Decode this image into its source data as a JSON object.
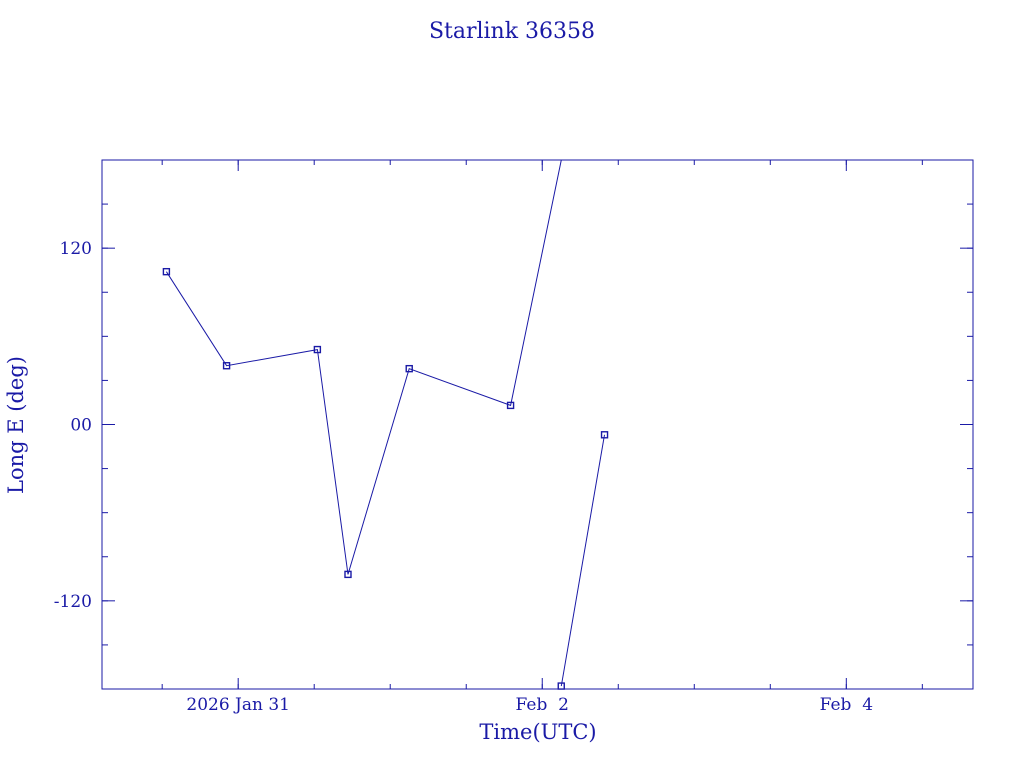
{
  "chart_data": {
    "type": "line",
    "title": "Starlink 36358",
    "xlabel": "Time(UTC)",
    "ylabel": "Long E (deg)",
    "x_ticks": [
      {
        "value": "2026-01-31",
        "label": "2026 Jan 31"
      },
      {
        "value": "2026-02-02",
        "label": "Feb  2"
      },
      {
        "value": "2026-02-04",
        "label": "Feb  4"
      }
    ],
    "y_ticks": [
      {
        "value": 120,
        "label": "120"
      },
      {
        "value": 0,
        "label": "00"
      },
      {
        "value": -120,
        "label": "-120"
      }
    ],
    "xlim": [
      "2026-01-30T02:30",
      "2026-02-04T20:00"
    ],
    "ylim": [
      -180,
      180
    ],
    "grid": false,
    "legend": "none",
    "color": "#1a1aa6",
    "points": [
      {
        "x": "2026-01-30T12:40",
        "y": 104
      },
      {
        "x": "2026-01-30T22:10",
        "y": 40
      },
      {
        "x": "2026-01-31T12:30",
        "y": 51
      },
      {
        "x": "2026-01-31T17:20",
        "y": -102
      },
      {
        "x": "2026-02-01T03:00",
        "y": 38
      },
      {
        "x": "2026-02-01T19:00",
        "y": 13
      },
      {
        "x": "2026-02-02T03:00",
        "y": 180
      },
      {
        "x": "2026-02-02T03:00",
        "y": -178
      },
      {
        "x": "2026-02-02T09:50",
        "y": -7
      }
    ],
    "segments": [
      [
        0,
        1,
        2,
        3,
        4,
        5,
        6
      ],
      [
        7,
        8
      ]
    ]
  }
}
